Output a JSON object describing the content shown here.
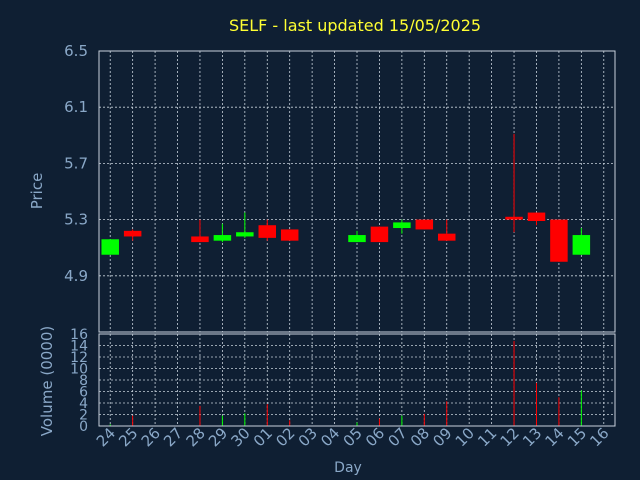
{
  "chart_data": {
    "type": "candlestick",
    "title": "SELF - last updated 15/05/2025",
    "xlabel": "Day",
    "ylabel": "Price",
    "volume_ylabel": "Volume (0000)",
    "x_ticks": [
      "24",
      "25",
      "26",
      "27",
      "28",
      "29",
      "30",
      "01",
      "02",
      "03",
      "04",
      "05",
      "06",
      "07",
      "08",
      "09",
      "10",
      "11",
      "12",
      "13",
      "14",
      "15",
      "16"
    ],
    "price_ylim": [
      4.5,
      6.5
    ],
    "price_ticks": [
      "6.5",
      "6.1",
      "5.7",
      "5.3",
      "4.9"
    ],
    "volume_ylim": [
      0,
      16
    ],
    "volume_ticks": [
      "16",
      "14",
      "12",
      "10",
      "8",
      "6",
      "4",
      "2",
      "0"
    ],
    "grid": true,
    "colors": {
      "up": "#00ff00",
      "down": "#ff0000",
      "grid": "#c8d2dc",
      "text": "#8aa8c8",
      "title": "#ffff33",
      "background": "#0f1f33"
    },
    "candles": [
      {
        "day": "24",
        "open": 5.05,
        "high": 5.16,
        "low": 5.05,
        "close": 5.16,
        "volume": 0.3
      },
      {
        "day": "25",
        "open": 5.22,
        "high": 5.23,
        "low": 5.15,
        "close": 5.18,
        "volume": 1.8
      },
      {
        "day": "28",
        "open": 5.18,
        "high": 5.3,
        "low": 5.14,
        "close": 5.14,
        "volume": 3.5
      },
      {
        "day": "29",
        "open": 5.15,
        "high": 5.27,
        "low": 5.14,
        "close": 5.19,
        "volume": 1.8
      },
      {
        "day": "30",
        "open": 5.18,
        "high": 5.35,
        "low": 5.17,
        "close": 5.21,
        "volume": 2.2
      },
      {
        "day": "01",
        "open": 5.26,
        "high": 5.3,
        "low": 5.15,
        "close": 5.17,
        "volume": 3.8
      },
      {
        "day": "02",
        "open": 5.23,
        "high": 5.23,
        "low": 5.15,
        "close": 5.15,
        "volume": 1.0
      },
      {
        "day": "05",
        "open": 5.14,
        "high": 5.22,
        "low": 5.14,
        "close": 5.19,
        "volume": 0.6
      },
      {
        "day": "06",
        "open": 5.25,
        "high": 5.25,
        "low": 5.14,
        "close": 5.14,
        "volume": 1.3
      },
      {
        "day": "07",
        "open": 5.24,
        "high": 5.3,
        "low": 5.2,
        "close": 5.28,
        "volume": 1.8
      },
      {
        "day": "08",
        "open": 5.3,
        "high": 5.3,
        "low": 5.23,
        "close": 5.23,
        "volume": 2.1
      },
      {
        "day": "09",
        "open": 5.2,
        "high": 5.3,
        "low": 5.15,
        "close": 5.15,
        "volume": 4.3
      },
      {
        "day": "12",
        "open": 5.32,
        "high": 5.91,
        "low": 5.21,
        "close": 5.3,
        "volume": 14.8
      },
      {
        "day": "13",
        "open": 5.35,
        "high": 5.35,
        "low": 5.26,
        "close": 5.29,
        "volume": 7.5
      },
      {
        "day": "14",
        "open": 5.3,
        "high": 5.3,
        "low": 5.0,
        "close": 5.0,
        "volume": 5.0
      },
      {
        "day": "15",
        "open": 5.05,
        "high": 5.24,
        "low": 5.05,
        "close": 5.19,
        "volume": 6.2
      }
    ]
  }
}
